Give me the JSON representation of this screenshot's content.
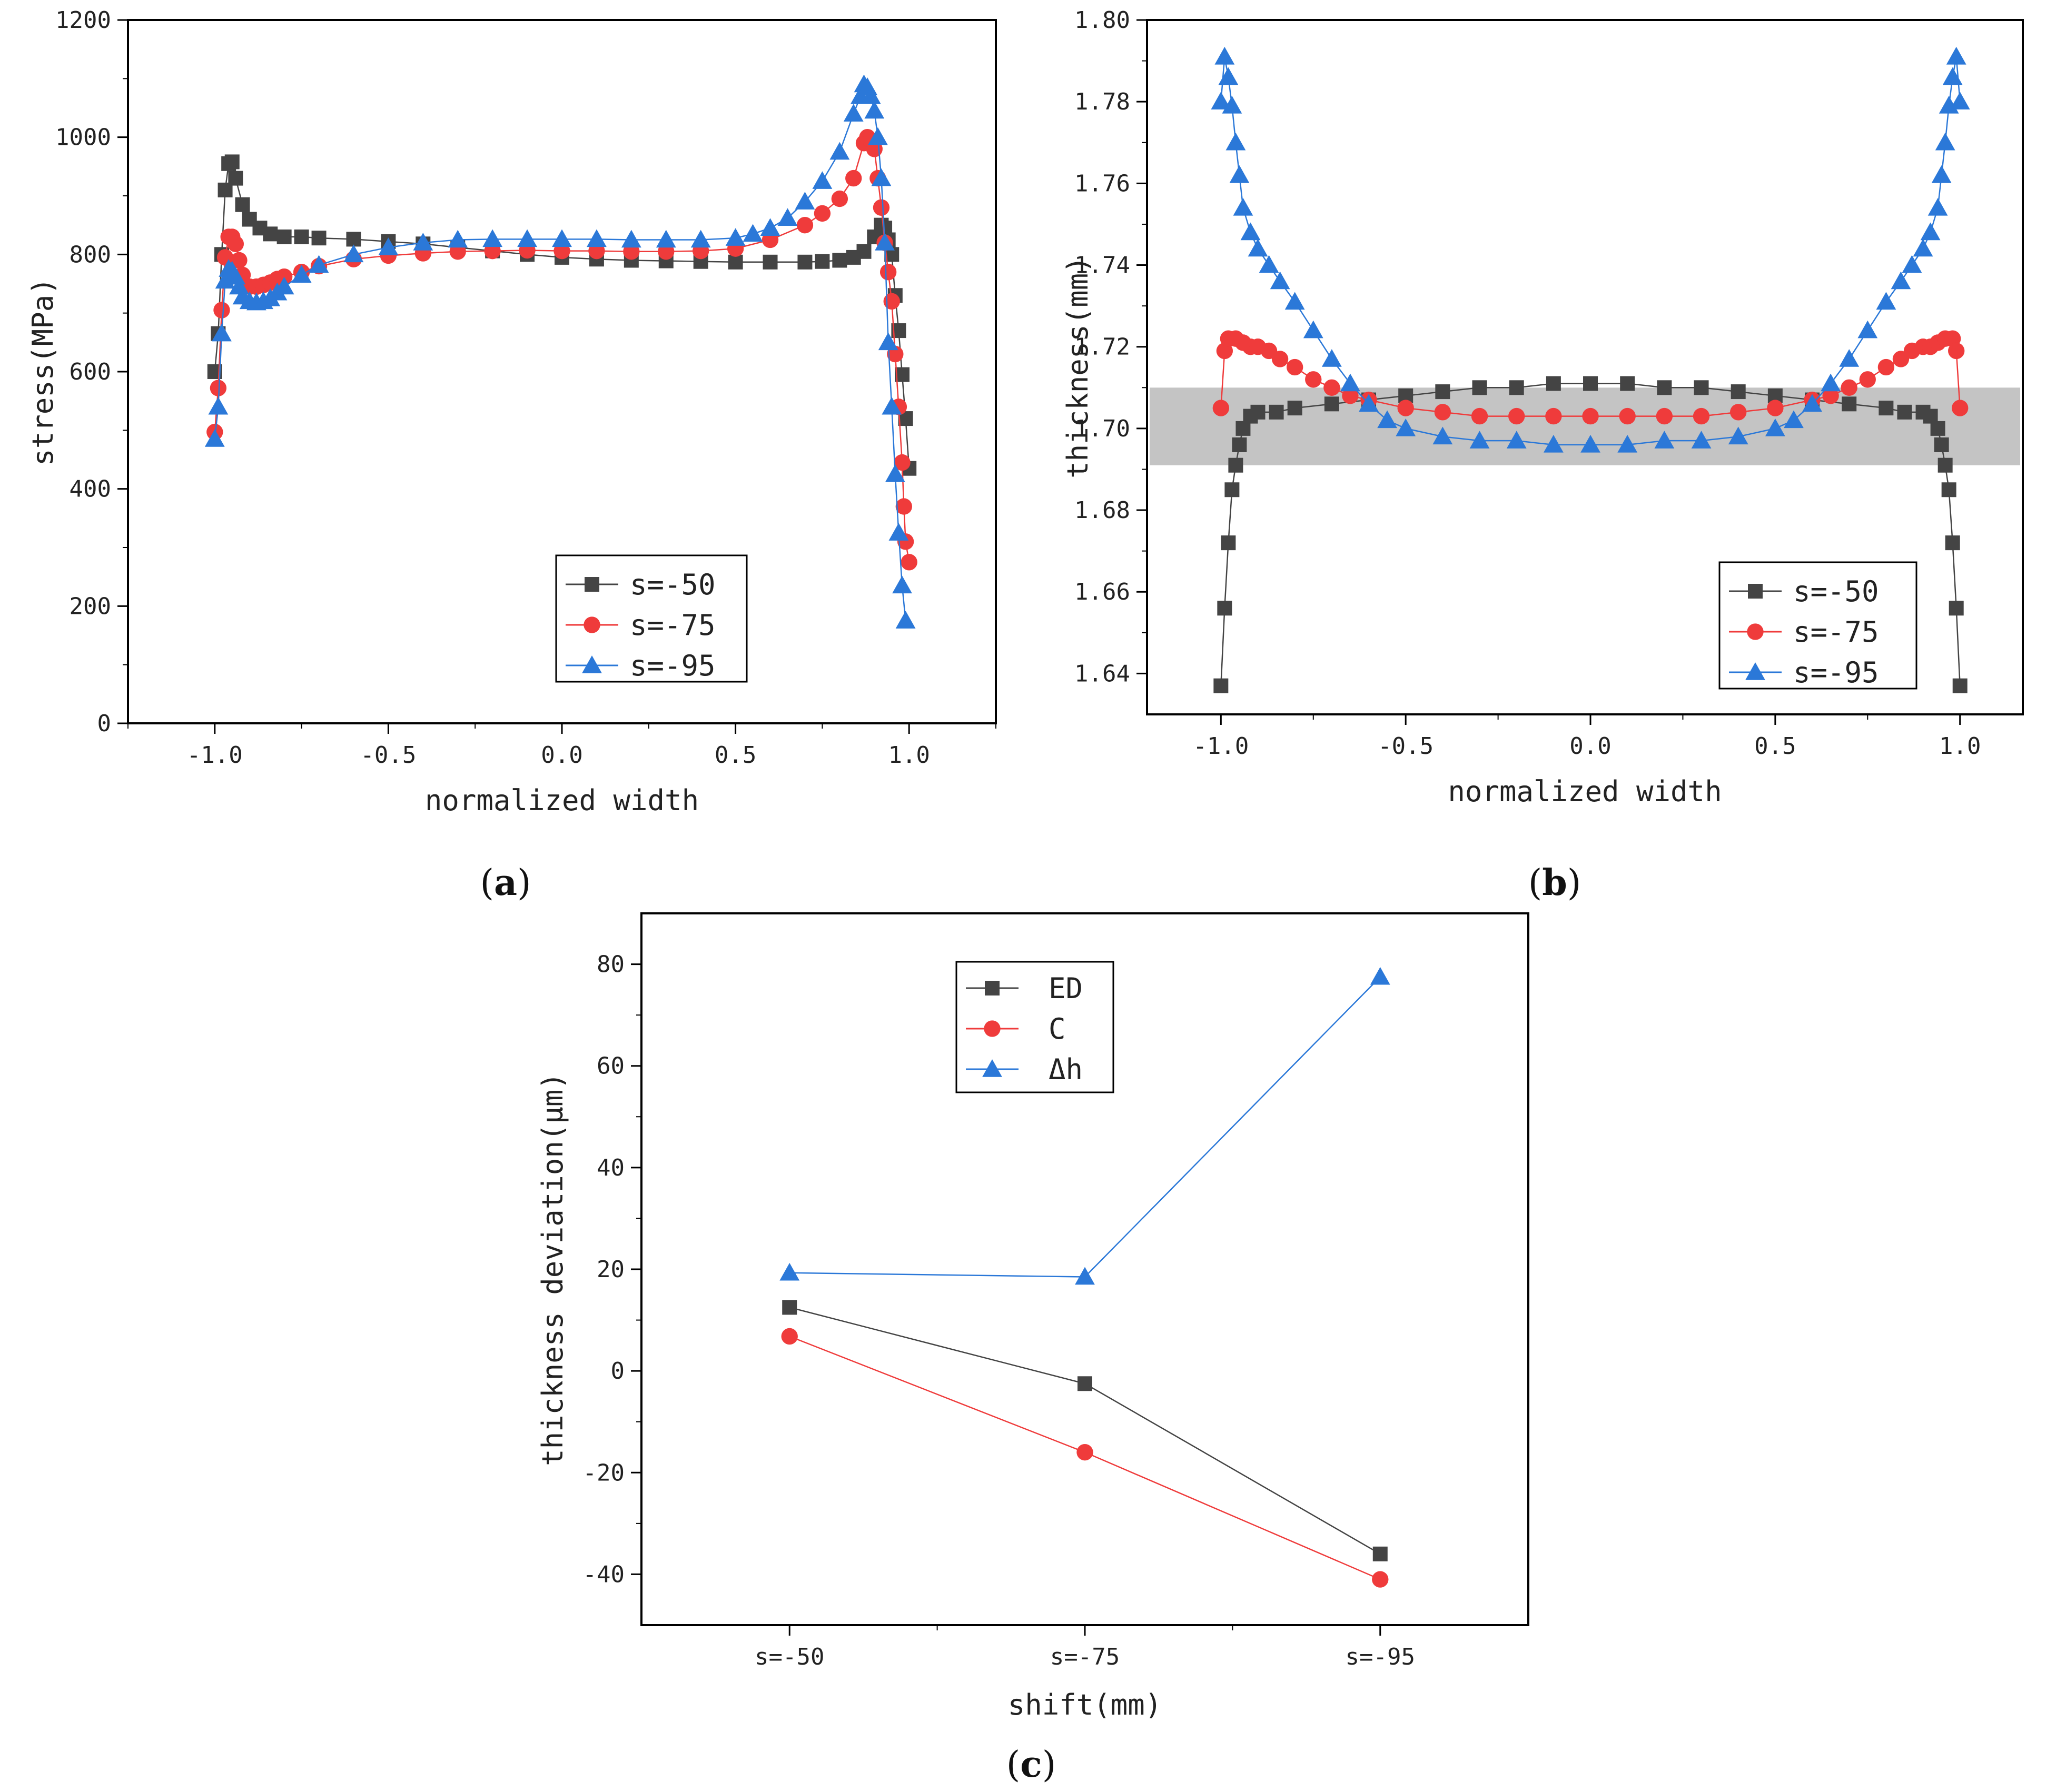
{
  "colors": {
    "s50": "#444444",
    "s75": "#ef3b3b",
    "s95": "#2b78d8",
    "band": "#c4c4c4",
    "axis": "#000000"
  },
  "panel_labels": {
    "a": {
      "open": "(",
      "letter": "a",
      "close": ")"
    },
    "b": {
      "open": "(",
      "letter": "b",
      "close": ")"
    },
    "c": {
      "open": "(",
      "letter": "c",
      "close": ")"
    }
  },
  "chart_data": [
    {
      "id": "a",
      "type": "scatter",
      "xlabel": "normalized width",
      "ylabel": "stress(MPa)",
      "xlim": [
        -1.25,
        1.25
      ],
      "ylim": [
        0,
        1200
      ],
      "xticks": [
        -1.0,
        -0.5,
        0.0,
        0.5,
        1.0
      ],
      "xtick_labels": [
        "-1.0",
        "-0.5",
        "0.0",
        "0.5",
        "1.0"
      ],
      "yticks": [
        0,
        200,
        400,
        600,
        800,
        1000,
        1200
      ],
      "ytick_labels": [
        "0",
        "200",
        "400",
        "600",
        "800",
        "1000",
        "1200"
      ],
      "legend_position": "bottom-right",
      "series": [
        {
          "name": "s=-50",
          "marker": "square",
          "color": "#444444",
          "x": [
            -1.0,
            -0.99,
            -0.98,
            -0.97,
            -0.96,
            -0.95,
            -0.94,
            -0.92,
            -0.9,
            -0.87,
            -0.84,
            -0.8,
            -0.75,
            -0.7,
            -0.6,
            -0.5,
            -0.4,
            -0.3,
            -0.2,
            -0.1,
            0.0,
            0.1,
            0.2,
            0.3,
            0.4,
            0.5,
            0.6,
            0.7,
            0.75,
            0.8,
            0.84,
            0.87,
            0.9,
            0.92,
            0.93,
            0.94,
            0.95,
            0.96,
            0.97,
            0.98,
            0.99,
            1.0
          ],
          "y": [
            600,
            665,
            800,
            910,
            955,
            958,
            930,
            885,
            860,
            845,
            835,
            830,
            830,
            828,
            826,
            822,
            818,
            812,
            806,
            800,
            795,
            792,
            790,
            789,
            788,
            787,
            787,
            787,
            788,
            790,
            795,
            805,
            830,
            850,
            845,
            825,
            800,
            730,
            670,
            595,
            520,
            435
          ],
          "y2": [
            null
          ]
        },
        {
          "name": "s=-75",
          "marker": "circle",
          "color": "#ef3b3b",
          "x": [
            -1.0,
            -0.99,
            -0.98,
            -0.97,
            -0.96,
            -0.95,
            -0.94,
            -0.93,
            -0.92,
            -0.9,
            -0.88,
            -0.86,
            -0.84,
            -0.82,
            -0.8,
            -0.75,
            -0.7,
            -0.6,
            -0.5,
            -0.4,
            -0.3,
            -0.2,
            -0.1,
            0.0,
            0.1,
            0.2,
            0.3,
            0.4,
            0.5,
            0.6,
            0.7,
            0.75,
            0.8,
            0.84,
            0.87,
            0.88,
            0.89,
            0.9,
            0.91,
            0.92,
            0.93,
            0.94,
            0.95,
            0.96,
            0.97,
            0.98,
            0.985,
            0.99,
            1.0
          ],
          "y": [
            497,
            572,
            705,
            795,
            830,
            830,
            818,
            790,
            765,
            745,
            745,
            748,
            752,
            758,
            762,
            770,
            780,
            792,
            798,
            802,
            805,
            806,
            807,
            806,
            806,
            805,
            805,
            806,
            810,
            825,
            850,
            870,
            895,
            930,
            990,
            1000,
            995,
            980,
            930,
            880,
            820,
            770,
            720,
            630,
            540,
            445,
            370,
            310,
            275
          ]
        },
        {
          "name": "s=-95",
          "marker": "triangle",
          "color": "#2b78d8",
          "x": [
            -1.0,
            -0.99,
            -0.98,
            -0.97,
            -0.96,
            -0.95,
            -0.94,
            -0.93,
            -0.92,
            -0.9,
            -0.88,
            -0.86,
            -0.84,
            -0.82,
            -0.8,
            -0.75,
            -0.7,
            -0.6,
            -0.5,
            -0.4,
            -0.3,
            -0.2,
            -0.1,
            0.0,
            0.1,
            0.2,
            0.3,
            0.4,
            0.5,
            0.55,
            0.6,
            0.65,
            0.7,
            0.75,
            0.8,
            0.84,
            0.86,
            0.87,
            0.88,
            0.89,
            0.9,
            0.91,
            0.92,
            0.93,
            0.94,
            0.95,
            0.96,
            0.97,
            0.98,
            0.99
          ],
          "y": [
            485,
            540,
            665,
            755,
            775,
            772,
            762,
            745,
            728,
            720,
            718,
            720,
            725,
            735,
            745,
            765,
            782,
            800,
            812,
            820,
            825,
            826,
            826,
            826,
            826,
            825,
            825,
            825,
            828,
            835,
            845,
            862,
            890,
            925,
            975,
            1040,
            1070,
            1090,
            1085,
            1070,
            1045,
            1000,
            930,
            820,
            650,
            540,
            425,
            325,
            235,
            175
          ]
        }
      ]
    },
    {
      "id": "b",
      "type": "scatter",
      "xlabel": "normalized width",
      "ylabel": "thickness(mm)",
      "xlim": [
        -1.2,
        1.17
      ],
      "ylim": [
        1.63,
        1.8
      ],
      "xticks": [
        -1.0,
        -0.5,
        0.0,
        0.5,
        1.0
      ],
      "xtick_labels": [
        "-1.0",
        "-0.5",
        "0.0",
        "0.5",
        "1.0"
      ],
      "yticks": [
        1.64,
        1.66,
        1.68,
        1.7,
        1.72,
        1.74,
        1.76,
        1.78,
        1.8
      ],
      "ytick_labels": [
        "1.64",
        "1.66",
        "1.68",
        "1.70",
        "1.72",
        "1.74",
        "1.76",
        "1.78",
        "1.80"
      ],
      "band": [
        1.691,
        1.71
      ],
      "legend_position": "bottom-right",
      "series": [
        {
          "name": "s=-50",
          "marker": "square",
          "color": "#444444",
          "x": [
            -1.0,
            -0.99,
            -0.98,
            -0.97,
            -0.96,
            -0.95,
            -0.94,
            -0.92,
            -0.9,
            -0.85,
            -0.8,
            -0.7,
            -0.6,
            -0.5,
            -0.4,
            -0.3,
            -0.2,
            -0.1,
            0.0,
            0.1,
            0.2,
            0.3,
            0.4,
            0.5,
            0.6,
            0.7,
            0.8,
            0.85,
            0.9,
            0.92,
            0.94,
            0.95,
            0.96,
            0.97,
            0.98,
            0.99,
            1.0
          ],
          "y": [
            1.637,
            1.656,
            1.672,
            1.685,
            1.691,
            1.696,
            1.7,
            1.703,
            1.704,
            1.704,
            1.705,
            1.706,
            1.707,
            1.708,
            1.709,
            1.71,
            1.71,
            1.711,
            1.711,
            1.711,
            1.71,
            1.71,
            1.709,
            1.708,
            1.707,
            1.706,
            1.705,
            1.704,
            1.704,
            1.703,
            1.7,
            1.696,
            1.691,
            1.685,
            1.672,
            1.656,
            1.637
          ]
        },
        {
          "name": "s=-75",
          "marker": "circle",
          "color": "#ef3b3b",
          "x": [
            -1.0,
            -0.99,
            -0.98,
            -0.96,
            -0.94,
            -0.92,
            -0.9,
            -0.87,
            -0.84,
            -0.8,
            -0.75,
            -0.7,
            -0.65,
            -0.6,
            -0.5,
            -0.4,
            -0.3,
            -0.2,
            -0.1,
            0.0,
            0.1,
            0.2,
            0.3,
            0.4,
            0.5,
            0.6,
            0.65,
            0.7,
            0.75,
            0.8,
            0.84,
            0.87,
            0.9,
            0.92,
            0.94,
            0.96,
            0.98,
            0.99,
            1.0
          ],
          "y": [
            1.705,
            1.719,
            1.722,
            1.722,
            1.721,
            1.72,
            1.72,
            1.719,
            1.717,
            1.715,
            1.712,
            1.71,
            1.708,
            1.707,
            1.705,
            1.704,
            1.703,
            1.703,
            1.703,
            1.703,
            1.703,
            1.703,
            1.703,
            1.704,
            1.705,
            1.707,
            1.708,
            1.71,
            1.712,
            1.715,
            1.717,
            1.719,
            1.72,
            1.72,
            1.721,
            1.722,
            1.722,
            1.719,
            1.705
          ]
        },
        {
          "name": "s=-95",
          "marker": "triangle",
          "color": "#2b78d8",
          "x": [
            -1.0,
            -0.99,
            -0.98,
            -0.97,
            -0.96,
            -0.95,
            -0.94,
            -0.92,
            -0.9,
            -0.87,
            -0.84,
            -0.8,
            -0.75,
            -0.7,
            -0.65,
            -0.6,
            -0.55,
            -0.5,
            -0.4,
            -0.3,
            -0.2,
            -0.1,
            0.0,
            0.1,
            0.2,
            0.3,
            0.4,
            0.5,
            0.55,
            0.6,
            0.65,
            0.7,
            0.75,
            0.8,
            0.84,
            0.87,
            0.9,
            0.92,
            0.94,
            0.95,
            0.96,
            0.97,
            0.98,
            0.99,
            1.0
          ],
          "y": [
            1.78,
            1.791,
            1.786,
            1.779,
            1.77,
            1.762,
            1.754,
            1.748,
            1.744,
            1.74,
            1.736,
            1.731,
            1.724,
            1.717,
            1.711,
            1.706,
            1.702,
            1.7,
            1.698,
            1.697,
            1.697,
            1.696,
            1.696,
            1.696,
            1.697,
            1.697,
            1.698,
            1.7,
            1.702,
            1.706,
            1.711,
            1.717,
            1.724,
            1.731,
            1.736,
            1.74,
            1.744,
            1.748,
            1.754,
            1.762,
            1.77,
            1.779,
            1.786,
            1.791,
            1.78
          ]
        }
      ]
    },
    {
      "id": "c",
      "type": "line",
      "xlabel": "shift(mm)",
      "ylabel": "thickness deviation(μm)",
      "categories": [
        "s=-50",
        "s=-75",
        "s=-95"
      ],
      "ylim": [
        -50,
        90
      ],
      "yticks": [
        -40,
        -20,
        0,
        20,
        40,
        60,
        80
      ],
      "ytick_labels": [
        "-40",
        "-20",
        "0",
        "20",
        "40",
        "60",
        "80"
      ],
      "legend_position": "top-center",
      "series": [
        {
          "name": "ED",
          "marker": "square",
          "color": "#444444",
          "values": [
            12.5,
            -2.5,
            -36
          ]
        },
        {
          "name": "C",
          "marker": "circle",
          "color": "#ef3b3b",
          "values": [
            6.8,
            -16,
            -41
          ]
        },
        {
          "name": "Δh",
          "marker": "triangle",
          "color": "#2b78d8",
          "values": [
            19.3,
            18.5,
            77.5
          ]
        }
      ]
    }
  ]
}
